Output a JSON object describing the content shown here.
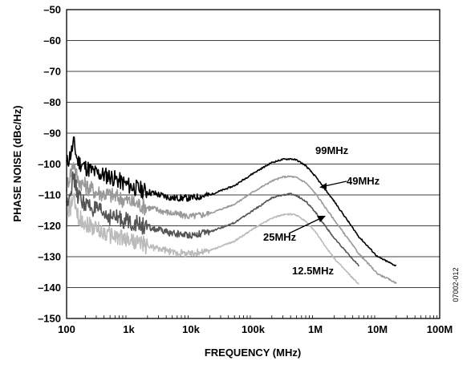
{
  "chart_data": {
    "type": "line",
    "title": "",
    "xlabel": "FREQUENCY (MHz)",
    "ylabel": "PHASE NOISE (dBc/Hz)",
    "xscale": "log",
    "xlim": [
      100,
      100000000
    ],
    "ylim": [
      -150,
      -50
    ],
    "grid": "horizontal",
    "x_tick_labels": [
      "100",
      "1k",
      "10k",
      "100k",
      "1M",
      "10M",
      "100M"
    ],
    "y_tick_labels": [
      "–50",
      "–60",
      "–70",
      "–80",
      "–90",
      "–100",
      "–110",
      "–120",
      "–130",
      "–140",
      "–150"
    ],
    "series": [
      {
        "name": "99MHz",
        "color": "#000000",
        "x": [
          100,
          120,
          130,
          150,
          200,
          300,
          500,
          1000,
          2000,
          5000,
          10000,
          20000,
          50000,
          100000,
          200000,
          300000,
          400000,
          500000,
          700000,
          1000000,
          2000000,
          5000000,
          10000000,
          20000000
        ],
        "y": [
          -100,
          -96,
          -93,
          -99,
          -101,
          -103,
          -104,
          -107,
          -109,
          -111,
          -111,
          -110,
          -107,
          -103,
          -99.5,
          -98.5,
          -98.3,
          -98.7,
          -100.5,
          -104,
          -112,
          -123.5,
          -130,
          -133
        ]
      },
      {
        "name": "49MHz",
        "color": "#999999",
        "x": [
          100,
          120,
          130,
          150,
          200,
          300,
          500,
          1000,
          2000,
          5000,
          10000,
          20000,
          50000,
          100000,
          200000,
          300000,
          400000,
          500000,
          700000,
          1000000,
          2000000,
          5000000,
          10000000,
          20000000
        ],
        "y": [
          -107,
          -102,
          -99,
          -105,
          -107,
          -109,
          -110,
          -112,
          -114,
          -116,
          -117,
          -116,
          -113,
          -109,
          -105.5,
          -104.2,
          -104,
          -104.4,
          -106,
          -109.5,
          -118,
          -129,
          -135.5,
          -138.5
        ]
      },
      {
        "name": "25MHz",
        "color": "#555555",
        "x": [
          100,
          120,
          130,
          150,
          200,
          300,
          500,
          1000,
          2000,
          5000,
          10000,
          20000,
          50000,
          100000,
          200000,
          300000,
          400000,
          500000,
          700000,
          1000000,
          2000000,
          5000000
        ],
        "y": [
          -113,
          -107,
          -104,
          -110,
          -113,
          -115,
          -117,
          -118.5,
          -120.5,
          -122.5,
          -123,
          -122,
          -119,
          -115,
          -111,
          -110,
          -109.7,
          -110.2,
          -112,
          -115.5,
          -124,
          -133
        ]
      },
      {
        "name": "12.5MHz",
        "color": "#bbbbbb",
        "x": [
          100,
          120,
          130,
          150,
          200,
          300,
          500,
          1000,
          2000,
          5000,
          10000,
          20000,
          50000,
          100000,
          200000,
          300000,
          400000,
          500000,
          700000,
          1000000,
          2000000,
          5000000
        ],
        "y": [
          -118,
          -113,
          -111,
          -117,
          -119,
          -121,
          -123,
          -124.5,
          -126.5,
          -128.5,
          -129,
          -128,
          -125,
          -121,
          -117.5,
          -116.4,
          -116.2,
          -116.6,
          -118.5,
          -122,
          -130.5,
          -139
        ]
      }
    ],
    "annotations": [
      "99MHz",
      "49MHz",
      "25MHz",
      "12.5MHz"
    ],
    "figure_id": "07002-012"
  }
}
